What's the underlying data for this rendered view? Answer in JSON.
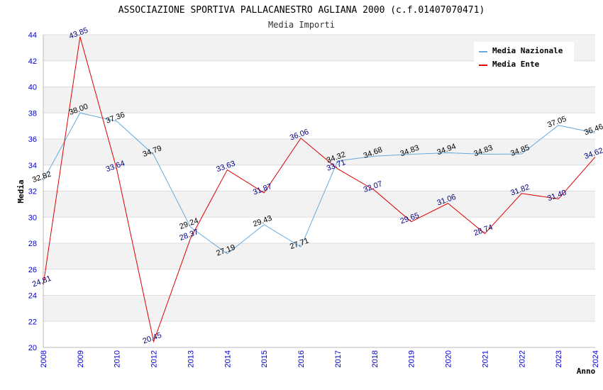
{
  "chart_data": {
    "type": "line",
    "title": "ASSOCIAZIONE SPORTIVA PALLACANESTRO AGLIANA 2000 (c.f.01407070471)",
    "subtitle": "Media Importi",
    "xlabel": "Anno",
    "ylabel": "Media",
    "ylim": [
      20,
      44
    ],
    "ytick_step": 2,
    "grid": true,
    "legend_position": "top-right",
    "categories": [
      "2008",
      "2009",
      "2010",
      "2012",
      "2013",
      "2014",
      "2015",
      "2016",
      "2017",
      "2018",
      "2019",
      "2020",
      "2021",
      "2022",
      "2023",
      "2024"
    ],
    "series": [
      {
        "name": "Media Nazionale",
        "color": "#66aadd",
        "label_color": "#000000",
        "values": [
          32.82,
          38.0,
          37.36,
          34.79,
          29.24,
          27.19,
          29.43,
          27.71,
          34.32,
          34.68,
          34.83,
          34.94,
          34.83,
          34.85,
          37.05,
          36.46
        ],
        "labels": [
          "32.82",
          "38.00",
          "37.36",
          "34.79",
          "29.24",
          "27.19",
          "29.43",
          "27.71",
          "34.32",
          "34.68",
          "34.83",
          "34.94",
          "34.83",
          "34.85",
          "37.05",
          "36.46"
        ]
      },
      {
        "name": "Media Ente",
        "color": "#dd0000",
        "label_color": "#000080",
        "values": [
          24.81,
          43.85,
          33.64,
          20.45,
          28.37,
          33.63,
          31.87,
          36.06,
          33.71,
          32.07,
          29.65,
          31.06,
          28.74,
          31.82,
          31.4,
          34.62
        ],
        "labels": [
          "24.81",
          "43.85",
          "33.64",
          "20.45",
          "28.37",
          "33.63",
          "31.87",
          "36.06",
          "33.71",
          "32.07",
          "29.65",
          "31.06",
          "28.74",
          "31.82",
          "31.40",
          "34.62"
        ]
      }
    ]
  }
}
